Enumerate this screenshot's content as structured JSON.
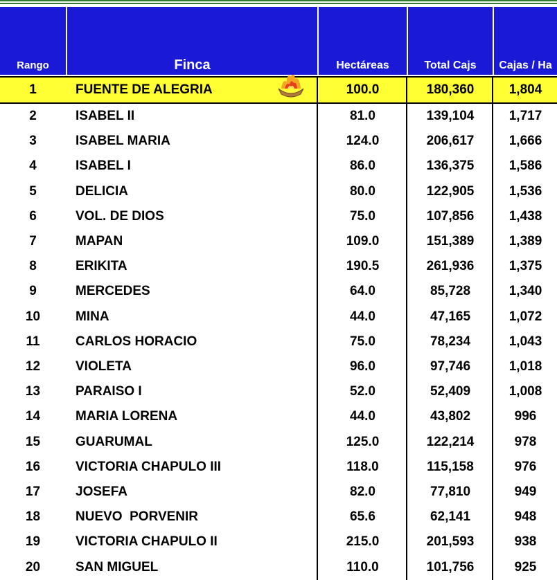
{
  "table": {
    "header": [
      "Rango",
      "Finca",
      "Hectáreas",
      "Total Cajs",
      "Cajas / Ha"
    ],
    "rows": [
      [
        "1",
        "FUENTE DE ALEGRIA",
        "100.0",
        "180,360",
        "1,804"
      ],
      [
        "2",
        "ISABEL II",
        "81.0",
        "139,104",
        "1,717"
      ],
      [
        "3",
        "ISABEL MARIA",
        "124.0",
        "206,617",
        "1,666"
      ],
      [
        "4",
        "ISABEL I",
        "86.0",
        "136,375",
        "1,586"
      ],
      [
        "5",
        "DELICIA",
        "80.0",
        "122,905",
        "1,536"
      ],
      [
        "6",
        "VOL. DE DIOS",
        "75.0",
        "107,856",
        "1,438"
      ],
      [
        "7",
        "MAPAN",
        "109.0",
        "151,389",
        "1,389"
      ],
      [
        "8",
        "ERIKITA",
        "190.5",
        "261,936",
        "1,375"
      ],
      [
        "9",
        "MERCEDES",
        "64.0",
        "85,728",
        "1,340"
      ],
      [
        "10",
        "MINA",
        "44.0",
        "47,165",
        "1,072"
      ],
      [
        "11",
        "CARLOS HORACIO",
        "75.0",
        "78,234",
        "1,043"
      ],
      [
        "12",
        "VIOLETA",
        "96.0",
        "97,746",
        "1,018"
      ],
      [
        "13",
        "PARAISO I",
        "52.0",
        "52,409",
        "1,008"
      ],
      [
        "14",
        "MARIA LORENA",
        "44.0",
        "43,802",
        "996"
      ],
      [
        "15",
        "GUARUMAL",
        "125.0",
        "122,214",
        "978"
      ],
      [
        "16",
        "VICTORIA CHAPULO III",
        "118.0",
        "115,158",
        "976"
      ],
      [
        "17",
        "JOSEFA",
        "82.0",
        "77,810",
        "949"
      ],
      [
        "18",
        "NUEVO  PORVENIR",
        "65.6",
        "62,141",
        "948"
      ],
      [
        "19",
        "VICTORIA CHAPULO II",
        "215.0",
        "201,593",
        "938"
      ],
      [
        "20",
        "SAN MIGUEL",
        "110.0",
        "101,756",
        "925"
      ]
    ]
  }
}
